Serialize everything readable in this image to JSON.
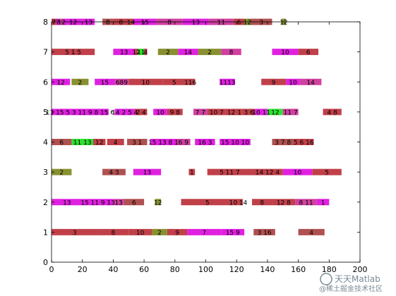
{
  "chart_data": {
    "type": "gantt",
    "title": "",
    "xlabel": "",
    "ylabel": "",
    "xlim": [
      0,
      200
    ],
    "ylim": [
      0,
      8
    ],
    "x_ticks": [
      "0",
      "20",
      "40",
      "60",
      "80",
      "100",
      "120",
      "140",
      "160",
      "180",
      "200"
    ],
    "y_ticks": [
      "0",
      "1",
      "2",
      "3",
      "4",
      "5",
      "6",
      "7",
      "8"
    ],
    "grid": false,
    "colors": {
      "red": "#c0404a",
      "magenta": "#e020e0",
      "brown": "#b05050",
      "olive": "#889030",
      "green": "#30e030",
      "pink": "#d040a0"
    },
    "bars": [
      {
        "row": 8,
        "start": 0,
        "end": 3,
        "color": "red",
        "label": "7"
      },
      {
        "row": 8,
        "start": 3,
        "end": 5,
        "color": "magenta",
        "label": "7"
      },
      {
        "row": 8,
        "start": 5,
        "end": 8,
        "color": "pink",
        "label": "12"
      },
      {
        "row": 8,
        "start": 8,
        "end": 20,
        "color": "magenta",
        "label": "12"
      },
      {
        "row": 8,
        "start": 20,
        "end": 28,
        "color": "magenta",
        "label": "13"
      },
      {
        "row": 8,
        "start": 33,
        "end": 40,
        "color": "brown",
        "label": "8"
      },
      {
        "row": 8,
        "start": 40,
        "end": 50,
        "color": "red",
        "label": "8"
      },
      {
        "row": 8,
        "start": 50,
        "end": 53,
        "color": "red",
        "label": "14"
      },
      {
        "row": 8,
        "start": 53,
        "end": 68,
        "color": "magenta",
        "label": "15"
      },
      {
        "row": 8,
        "start": 68,
        "end": 85,
        "color": "pink",
        "label": "8"
      },
      {
        "row": 8,
        "start": 85,
        "end": 102,
        "color": "magenta",
        "label": "13"
      },
      {
        "row": 8,
        "start": 102,
        "end": 118,
        "color": "pink",
        "label": "11"
      },
      {
        "row": 8,
        "start": 118,
        "end": 125,
        "color": "red",
        "label": "6"
      },
      {
        "row": 8,
        "start": 125,
        "end": 129,
        "color": "olive",
        "label": "12"
      },
      {
        "row": 8,
        "start": 129,
        "end": 143,
        "color": "brown",
        "label": "3"
      },
      {
        "row": 8,
        "start": 149,
        "end": 152,
        "color": "olive",
        "label": "12"
      },
      {
        "row": 7,
        "start": 0,
        "end": 28,
        "color": "red",
        "label": "5    1    5"
      },
      {
        "row": 7,
        "start": 40,
        "end": 54,
        "color": "magenta",
        "label": "13"
      },
      {
        "row": 7,
        "start": 54,
        "end": 56,
        "color": "red",
        "label": "12"
      },
      {
        "row": 7,
        "start": 56,
        "end": 60,
        "color": "green",
        "label": "11"
      },
      {
        "row": 7,
        "start": 60,
        "end": 62,
        "color": "red",
        "label": "4"
      },
      {
        "row": 7,
        "start": 69,
        "end": 82,
        "color": "olive",
        "label": "2"
      },
      {
        "row": 7,
        "start": 82,
        "end": 95,
        "color": "magenta",
        "label": "14"
      },
      {
        "row": 7,
        "start": 95,
        "end": 110,
        "color": "olive",
        "label": "2"
      },
      {
        "row": 7,
        "start": 110,
        "end": 123,
        "color": "pink",
        "label": "8"
      },
      {
        "row": 7,
        "start": 143,
        "end": 160,
        "color": "magenta",
        "label": "10"
      },
      {
        "row": 7,
        "start": 160,
        "end": 173,
        "color": "red",
        "label": "6"
      },
      {
        "row": 6,
        "start": 0,
        "end": 12,
        "color": "magenta",
        "label": "12"
      },
      {
        "row": 6,
        "start": 13,
        "end": 24,
        "color": "olive",
        "label": "2"
      },
      {
        "row": 6,
        "start": 28,
        "end": 41,
        "color": "magenta",
        "label": "15"
      },
      {
        "row": 6,
        "start": 41,
        "end": 50,
        "color": "pink",
        "label": "689"
      },
      {
        "row": 6,
        "start": 50,
        "end": 72,
        "color": "red",
        "label": "10"
      },
      {
        "row": 6,
        "start": 72,
        "end": 87,
        "color": "red",
        "label": "5"
      },
      {
        "row": 6,
        "start": 87,
        "end": 93,
        "color": "red",
        "label": "116"
      },
      {
        "row": 6,
        "start": 109,
        "end": 119,
        "color": "magenta",
        "label": "1113"
      },
      {
        "row": 6,
        "start": 136,
        "end": 152,
        "color": "red",
        "label": "9"
      },
      {
        "row": 6,
        "start": 152,
        "end": 161,
        "color": "magenta",
        "label": "10"
      },
      {
        "row": 6,
        "start": 161,
        "end": 175,
        "color": "pink",
        "label": "14"
      },
      {
        "row": 5,
        "start": 0,
        "end": 37,
        "color": "magenta",
        "label": "13 15 5 3 11 9 8 15 6"
      },
      {
        "row": 5,
        "start": 41,
        "end": 54,
        "color": "magenta",
        "label": "14 2 5 4"
      },
      {
        "row": 5,
        "start": 54,
        "end": 62,
        "color": "red",
        "label": "2 4"
      },
      {
        "row": 5,
        "start": 66,
        "end": 75,
        "color": "magenta",
        "label": "10"
      },
      {
        "row": 5,
        "start": 75,
        "end": 85,
        "color": "red",
        "label": "9 8"
      },
      {
        "row": 5,
        "start": 92,
        "end": 101,
        "color": "pink",
        "label": "7 7"
      },
      {
        "row": 5,
        "start": 101,
        "end": 113,
        "color": "red",
        "label": "10 7"
      },
      {
        "row": 5,
        "start": 113,
        "end": 124,
        "color": "red",
        "label": "12 1"
      },
      {
        "row": 5,
        "start": 124,
        "end": 132,
        "color": "red",
        "label": "3 6"
      },
      {
        "row": 5,
        "start": 132,
        "end": 140,
        "color": "magenta",
        "label": "10 11"
      },
      {
        "row": 5,
        "start": 140,
        "end": 150,
        "color": "green",
        "label": "12"
      },
      {
        "row": 5,
        "start": 150,
        "end": 160,
        "color": "pink",
        "label": "11 7"
      },
      {
        "row": 5,
        "start": 176,
        "end": 188,
        "color": "red",
        "label": "4 8"
      },
      {
        "row": 4,
        "start": 0,
        "end": 13,
        "color": "brown",
        "label": "6"
      },
      {
        "row": 4,
        "start": 13,
        "end": 27,
        "color": "green",
        "label": "11 13"
      },
      {
        "row": 4,
        "start": 27,
        "end": 35,
        "color": "red",
        "label": "12"
      },
      {
        "row": 4,
        "start": 36,
        "end": 47,
        "color": "red",
        "label": "4"
      },
      {
        "row": 4,
        "start": 49,
        "end": 62,
        "color": "brown",
        "label": "3 1"
      },
      {
        "row": 4,
        "start": 64,
        "end": 81,
        "color": "magenta",
        "label": "15 13 8 1"
      },
      {
        "row": 4,
        "start": 81,
        "end": 90,
        "color": "pink",
        "label": "6 9"
      },
      {
        "row": 4,
        "start": 93,
        "end": 106,
        "color": "magenta",
        "label": "16 3"
      },
      {
        "row": 4,
        "start": 109,
        "end": 129,
        "color": "magenta",
        "label": "15 10 10"
      },
      {
        "row": 4,
        "start": 143,
        "end": 157,
        "color": "brown",
        "label": "3 7 8"
      },
      {
        "row": 4,
        "start": 157,
        "end": 170,
        "color": "red",
        "label": "5 6 16"
      },
      {
        "row": 3,
        "start": 0,
        "end": 13,
        "color": "olive",
        "label": "2"
      },
      {
        "row": 3,
        "start": 33,
        "end": 48,
        "color": "brown",
        "label": "4    3"
      },
      {
        "row": 3,
        "start": 53,
        "end": 71,
        "color": "magenta",
        "label": "13"
      },
      {
        "row": 3,
        "start": 89,
        "end": 93,
        "color": "red",
        "label": "1"
      },
      {
        "row": 3,
        "start": 101,
        "end": 130,
        "color": "red",
        "label": "5    11 7"
      },
      {
        "row": 3,
        "start": 130,
        "end": 150,
        "color": "red",
        "label": "14 12 4"
      },
      {
        "row": 3,
        "start": 150,
        "end": 169,
        "color": "magenta",
        "label": "10"
      },
      {
        "row": 3,
        "start": 169,
        "end": 188,
        "color": "red",
        "label": "5"
      },
      {
        "row": 2,
        "start": 0,
        "end": 20,
        "color": "magenta",
        "label": "13"
      },
      {
        "row": 2,
        "start": 20,
        "end": 40,
        "color": "magenta",
        "label": "15 11 9 13"
      },
      {
        "row": 2,
        "start": 40,
        "end": 47,
        "color": "pink",
        "label": "13"
      },
      {
        "row": 2,
        "start": 47,
        "end": 60,
        "color": "brown",
        "label": "6"
      },
      {
        "row": 2,
        "start": 67,
        "end": 71,
        "color": "olive",
        "label": "12"
      },
      {
        "row": 2,
        "start": 84,
        "end": 118,
        "color": "red",
        "label": "5"
      },
      {
        "row": 2,
        "start": 118,
        "end": 124,
        "color": "red",
        "label": "10 14"
      },
      {
        "row": 2,
        "start": 130,
        "end": 143,
        "color": "red",
        "label": "8"
      },
      {
        "row": 2,
        "start": 143,
        "end": 158,
        "color": "red",
        "label": "12 8"
      },
      {
        "row": 2,
        "start": 158,
        "end": 172,
        "color": "pink",
        "label": "8 11"
      },
      {
        "row": 2,
        "start": 172,
        "end": 180,
        "color": "magenta",
        "label": "1"
      },
      {
        "row": 1,
        "start": 0,
        "end": 30,
        "color": "red",
        "label": "3"
      },
      {
        "row": 1,
        "start": 30,
        "end": 50,
        "color": "red",
        "label": "8"
      },
      {
        "row": 1,
        "start": 50,
        "end": 65,
        "color": "red",
        "label": "10"
      },
      {
        "row": 1,
        "start": 65,
        "end": 75,
        "color": "olive",
        "label": "2"
      },
      {
        "row": 1,
        "start": 75,
        "end": 88,
        "color": "red",
        "label": "9"
      },
      {
        "row": 1,
        "start": 88,
        "end": 110,
        "color": "magenta",
        "label": "7"
      },
      {
        "row": 1,
        "start": 110,
        "end": 125,
        "color": "magenta",
        "label": "15 9"
      },
      {
        "row": 1,
        "start": 131,
        "end": 145,
        "color": "brown",
        "label": "3 16"
      },
      {
        "row": 1,
        "start": 160,
        "end": 177,
        "color": "brown",
        "label": "4"
      }
    ]
  },
  "watermark": {
    "line1": "天天Matlab",
    "line2": "@稀土掘金技术社区"
  }
}
